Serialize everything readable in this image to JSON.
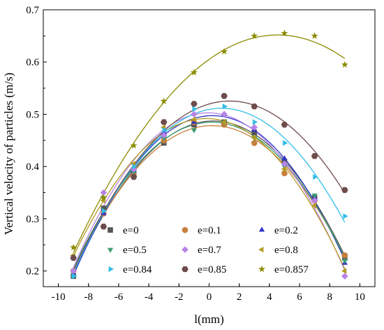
{
  "chart_data": {
    "type": "scatter",
    "xlabel": "l(mm)",
    "ylabel": "Vertical velocity of particles (m/s)",
    "xlim": [
      -11,
      11
    ],
    "ylim": [
      0.17,
      0.7
    ],
    "xticks": [
      -10,
      -8,
      -6,
      -4,
      -2,
      0,
      2,
      4,
      6,
      8,
      10
    ],
    "yticks": [
      0.2,
      0.3,
      0.4,
      0.5,
      0.6,
      0.7
    ],
    "x": [
      -9,
      -7,
      -5,
      -3,
      -1,
      1,
      3,
      5,
      7,
      9
    ],
    "fit": "quadratic",
    "legend_position": "bottom",
    "series": [
      {
        "name": "e=0",
        "color": "#555555",
        "marker": "square",
        "values": [
          0.19,
          0.32,
          0.39,
          0.445,
          0.48,
          0.485,
          0.465,
          0.41,
          0.34,
          0.225
        ]
      },
      {
        "name": "e=0.1",
        "color": "#c87f3d",
        "marker": "circle",
        "values": [
          0.2,
          0.31,
          0.383,
          0.45,
          0.485,
          0.48,
          0.445,
          0.387,
          0.335,
          0.23
        ]
      },
      {
        "name": "e=0.2",
        "color": "#2d35c8",
        "marker": "triangle-up",
        "values": [
          0.195,
          0.31,
          0.392,
          0.465,
          0.485,
          0.5,
          0.47,
          0.415,
          0.34,
          0.215
        ]
      },
      {
        "name": "e=0.5",
        "color": "#3c9e73",
        "marker": "triangle-down",
        "values": [
          0.19,
          0.34,
          0.39,
          0.455,
          0.47,
          0.485,
          0.455,
          0.4,
          0.345,
          0.22
        ]
      },
      {
        "name": "e=0.7",
        "color": "#b783e8",
        "marker": "diamond",
        "values": [
          0.2,
          0.35,
          0.395,
          0.46,
          0.5,
          0.5,
          0.475,
          0.405,
          0.335,
          0.19
        ]
      },
      {
        "name": "e=0.8",
        "color": "#b59a1e",
        "marker": "triangle-left",
        "values": [
          0.23,
          0.335,
          0.405,
          0.475,
          0.49,
          0.485,
          0.455,
          0.395,
          0.325,
          0.2
        ]
      },
      {
        "name": "e=0.84",
        "color": "#33bde6",
        "marker": "triangle-right",
        "values": [
          0.19,
          0.315,
          0.4,
          0.47,
          0.51,
          0.515,
          0.485,
          0.445,
          0.38,
          0.305
        ]
      },
      {
        "name": "e=0.85",
        "color": "#6e4c4c",
        "marker": "hexagon",
        "values": [
          0.225,
          0.285,
          0.38,
          0.485,
          0.52,
          0.535,
          0.515,
          0.48,
          0.42,
          0.355
        ]
      },
      {
        "name": "e=0.857",
        "color": "#8c8c00",
        "marker": "star",
        "values": [
          0.245,
          0.34,
          0.44,
          0.525,
          0.58,
          0.62,
          0.65,
          0.655,
          0.65,
          0.595
        ]
      }
    ]
  }
}
